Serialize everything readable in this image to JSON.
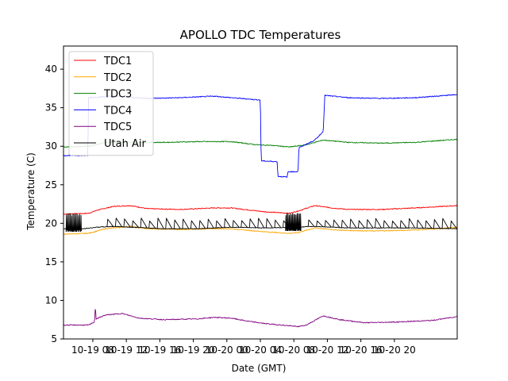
{
  "chart_data": {
    "type": "line",
    "title": "APOLLO TDC Temperatures",
    "xlabel": "Date (GMT)",
    "ylabel": "Temperature (C)",
    "xlim": [
      0,
      47
    ],
    "ylim": [
      5,
      43
    ],
    "yticks": [
      5,
      10,
      15,
      20,
      25,
      30,
      35,
      40
    ],
    "xticks": [
      {
        "x": 3.5,
        "label": "10-19 08"
      },
      {
        "x": 7.5,
        "label": "10-19 12"
      },
      {
        "x": 11.5,
        "label": "10-19 16"
      },
      {
        "x": 15.5,
        "label": "10-19 20"
      },
      {
        "x": 19.5,
        "label": "10-20 00"
      },
      {
        "x": 23.5,
        "label": "10-20 04"
      },
      {
        "x": 27.5,
        "label": "10-20 08"
      },
      {
        "x": 31.5,
        "label": "10-20 12"
      },
      {
        "x": 35.5,
        "label": "10-20 16"
      },
      {
        "x": 39.5,
        "label": "10-20 20"
      }
    ],
    "legend_position": "upper-left",
    "series": [
      {
        "name": "TDC1",
        "color": "#ff0000",
        "points": [
          [
            0,
            21.2
          ],
          [
            3,
            21.3
          ],
          [
            4,
            21.7
          ],
          [
            6,
            22.2
          ],
          [
            8,
            22.3
          ],
          [
            10,
            21.9
          ],
          [
            14,
            21.8
          ],
          [
            18,
            22.0
          ],
          [
            20,
            22.0
          ],
          [
            24,
            21.5
          ],
          [
            27,
            21.3
          ],
          [
            28,
            21.6
          ],
          [
            30,
            22.3
          ],
          [
            32,
            22.0
          ],
          [
            34,
            21.8
          ],
          [
            38,
            21.8
          ],
          [
            42,
            22.0
          ],
          [
            47,
            22.3
          ]
        ]
      },
      {
        "name": "TDC2",
        "color": "#ffa500",
        "points": [
          [
            0,
            18.6
          ],
          [
            3,
            18.7
          ],
          [
            5,
            19.3
          ],
          [
            8,
            19.6
          ],
          [
            10,
            19.3
          ],
          [
            14,
            19.2
          ],
          [
            18,
            19.3
          ],
          [
            20,
            19.3
          ],
          [
            24,
            18.9
          ],
          [
            27,
            18.7
          ],
          [
            28,
            18.8
          ],
          [
            30,
            19.4
          ],
          [
            33,
            19.1
          ],
          [
            37,
            19.0
          ],
          [
            41,
            19.1
          ],
          [
            45,
            19.3
          ],
          [
            47,
            19.5
          ]
        ]
      },
      {
        "name": "TDC3",
        "color": "#008000",
        "points": [
          [
            0,
            29.9
          ],
          [
            3,
            30.0
          ],
          [
            5,
            30.5
          ],
          [
            8,
            30.5
          ],
          [
            12,
            30.5
          ],
          [
            16,
            30.6
          ],
          [
            20,
            30.6
          ],
          [
            23,
            30.2
          ],
          [
            25,
            30.1
          ],
          [
            27,
            29.9
          ],
          [
            29,
            30.2
          ],
          [
            31,
            30.8
          ],
          [
            34,
            30.5
          ],
          [
            38,
            30.4
          ],
          [
            42,
            30.5
          ],
          [
            47,
            30.9
          ]
        ]
      },
      {
        "name": "TDC4",
        "color": "#0000ff",
        "points": [
          [
            0,
            28.8
          ],
          [
            2.9,
            28.8
          ],
          [
            3.0,
            36.3
          ],
          [
            6,
            36.5
          ],
          [
            10,
            36.2
          ],
          [
            14,
            36.3
          ],
          [
            18,
            36.5
          ],
          [
            20,
            36.3
          ],
          [
            23.5,
            36.0
          ],
          [
            23.6,
            28.1
          ],
          [
            25.5,
            28.0
          ],
          [
            25.6,
            26.1
          ],
          [
            26.7,
            26.0
          ],
          [
            26.8,
            26.7
          ],
          [
            28.0,
            26.7
          ],
          [
            28.1,
            29.8
          ],
          [
            30,
            30.8
          ],
          [
            31,
            31.9
          ],
          [
            31.2,
            36.6
          ],
          [
            34,
            36.3
          ],
          [
            38,
            36.2
          ],
          [
            42,
            36.3
          ],
          [
            47,
            36.7
          ]
        ]
      },
      {
        "name": "TDC5",
        "color": "#800080",
        "points": [
          [
            0,
            6.8
          ],
          [
            3,
            6.8
          ],
          [
            3.7,
            7.2
          ],
          [
            3.8,
            9.3
          ],
          [
            3.9,
            7.6
          ],
          [
            5,
            8.1
          ],
          [
            7,
            8.3
          ],
          [
            9,
            7.7
          ],
          [
            12,
            7.5
          ],
          [
            16,
            7.6
          ],
          [
            18,
            7.8
          ],
          [
            20,
            7.7
          ],
          [
            22,
            7.3
          ],
          [
            24,
            7.0
          ],
          [
            26,
            6.8
          ],
          [
            28,
            6.6
          ],
          [
            29,
            6.8
          ],
          [
            31,
            8.0
          ],
          [
            33,
            7.5
          ],
          [
            36,
            7.1
          ],
          [
            40,
            7.2
          ],
          [
            44,
            7.4
          ],
          [
            47,
            7.9
          ]
        ]
      },
      {
        "name": "Utah Air",
        "color": "#000000",
        "spikes": [
          {
            "from": 0.3,
            "to": 2.2,
            "count": 12,
            "low": 18.9,
            "high": 21.3
          },
          {
            "from": 26.5,
            "to": 28.4,
            "count": 14,
            "low": 19.0,
            "high": 21.3
          }
        ],
        "sawtooth": {
          "from": 5.2,
          "to": 46.8,
          "period": 1.0,
          "low": 19.3,
          "high": 20.5,
          "skip": [
            [
              26.3,
              28.7
            ]
          ]
        },
        "points": [
          [
            0,
            19.3
          ],
          [
            2.5,
            19.3
          ],
          [
            4,
            19.5
          ],
          [
            6,
            19.6
          ],
          [
            8,
            19.5
          ],
          [
            12,
            19.3
          ],
          [
            16,
            19.3
          ],
          [
            20,
            19.5
          ],
          [
            24,
            19.4
          ],
          [
            28,
            19.5
          ],
          [
            30,
            19.6
          ],
          [
            34,
            19.4
          ],
          [
            38,
            19.4
          ],
          [
            42,
            19.4
          ],
          [
            47,
            19.3
          ]
        ]
      }
    ]
  }
}
